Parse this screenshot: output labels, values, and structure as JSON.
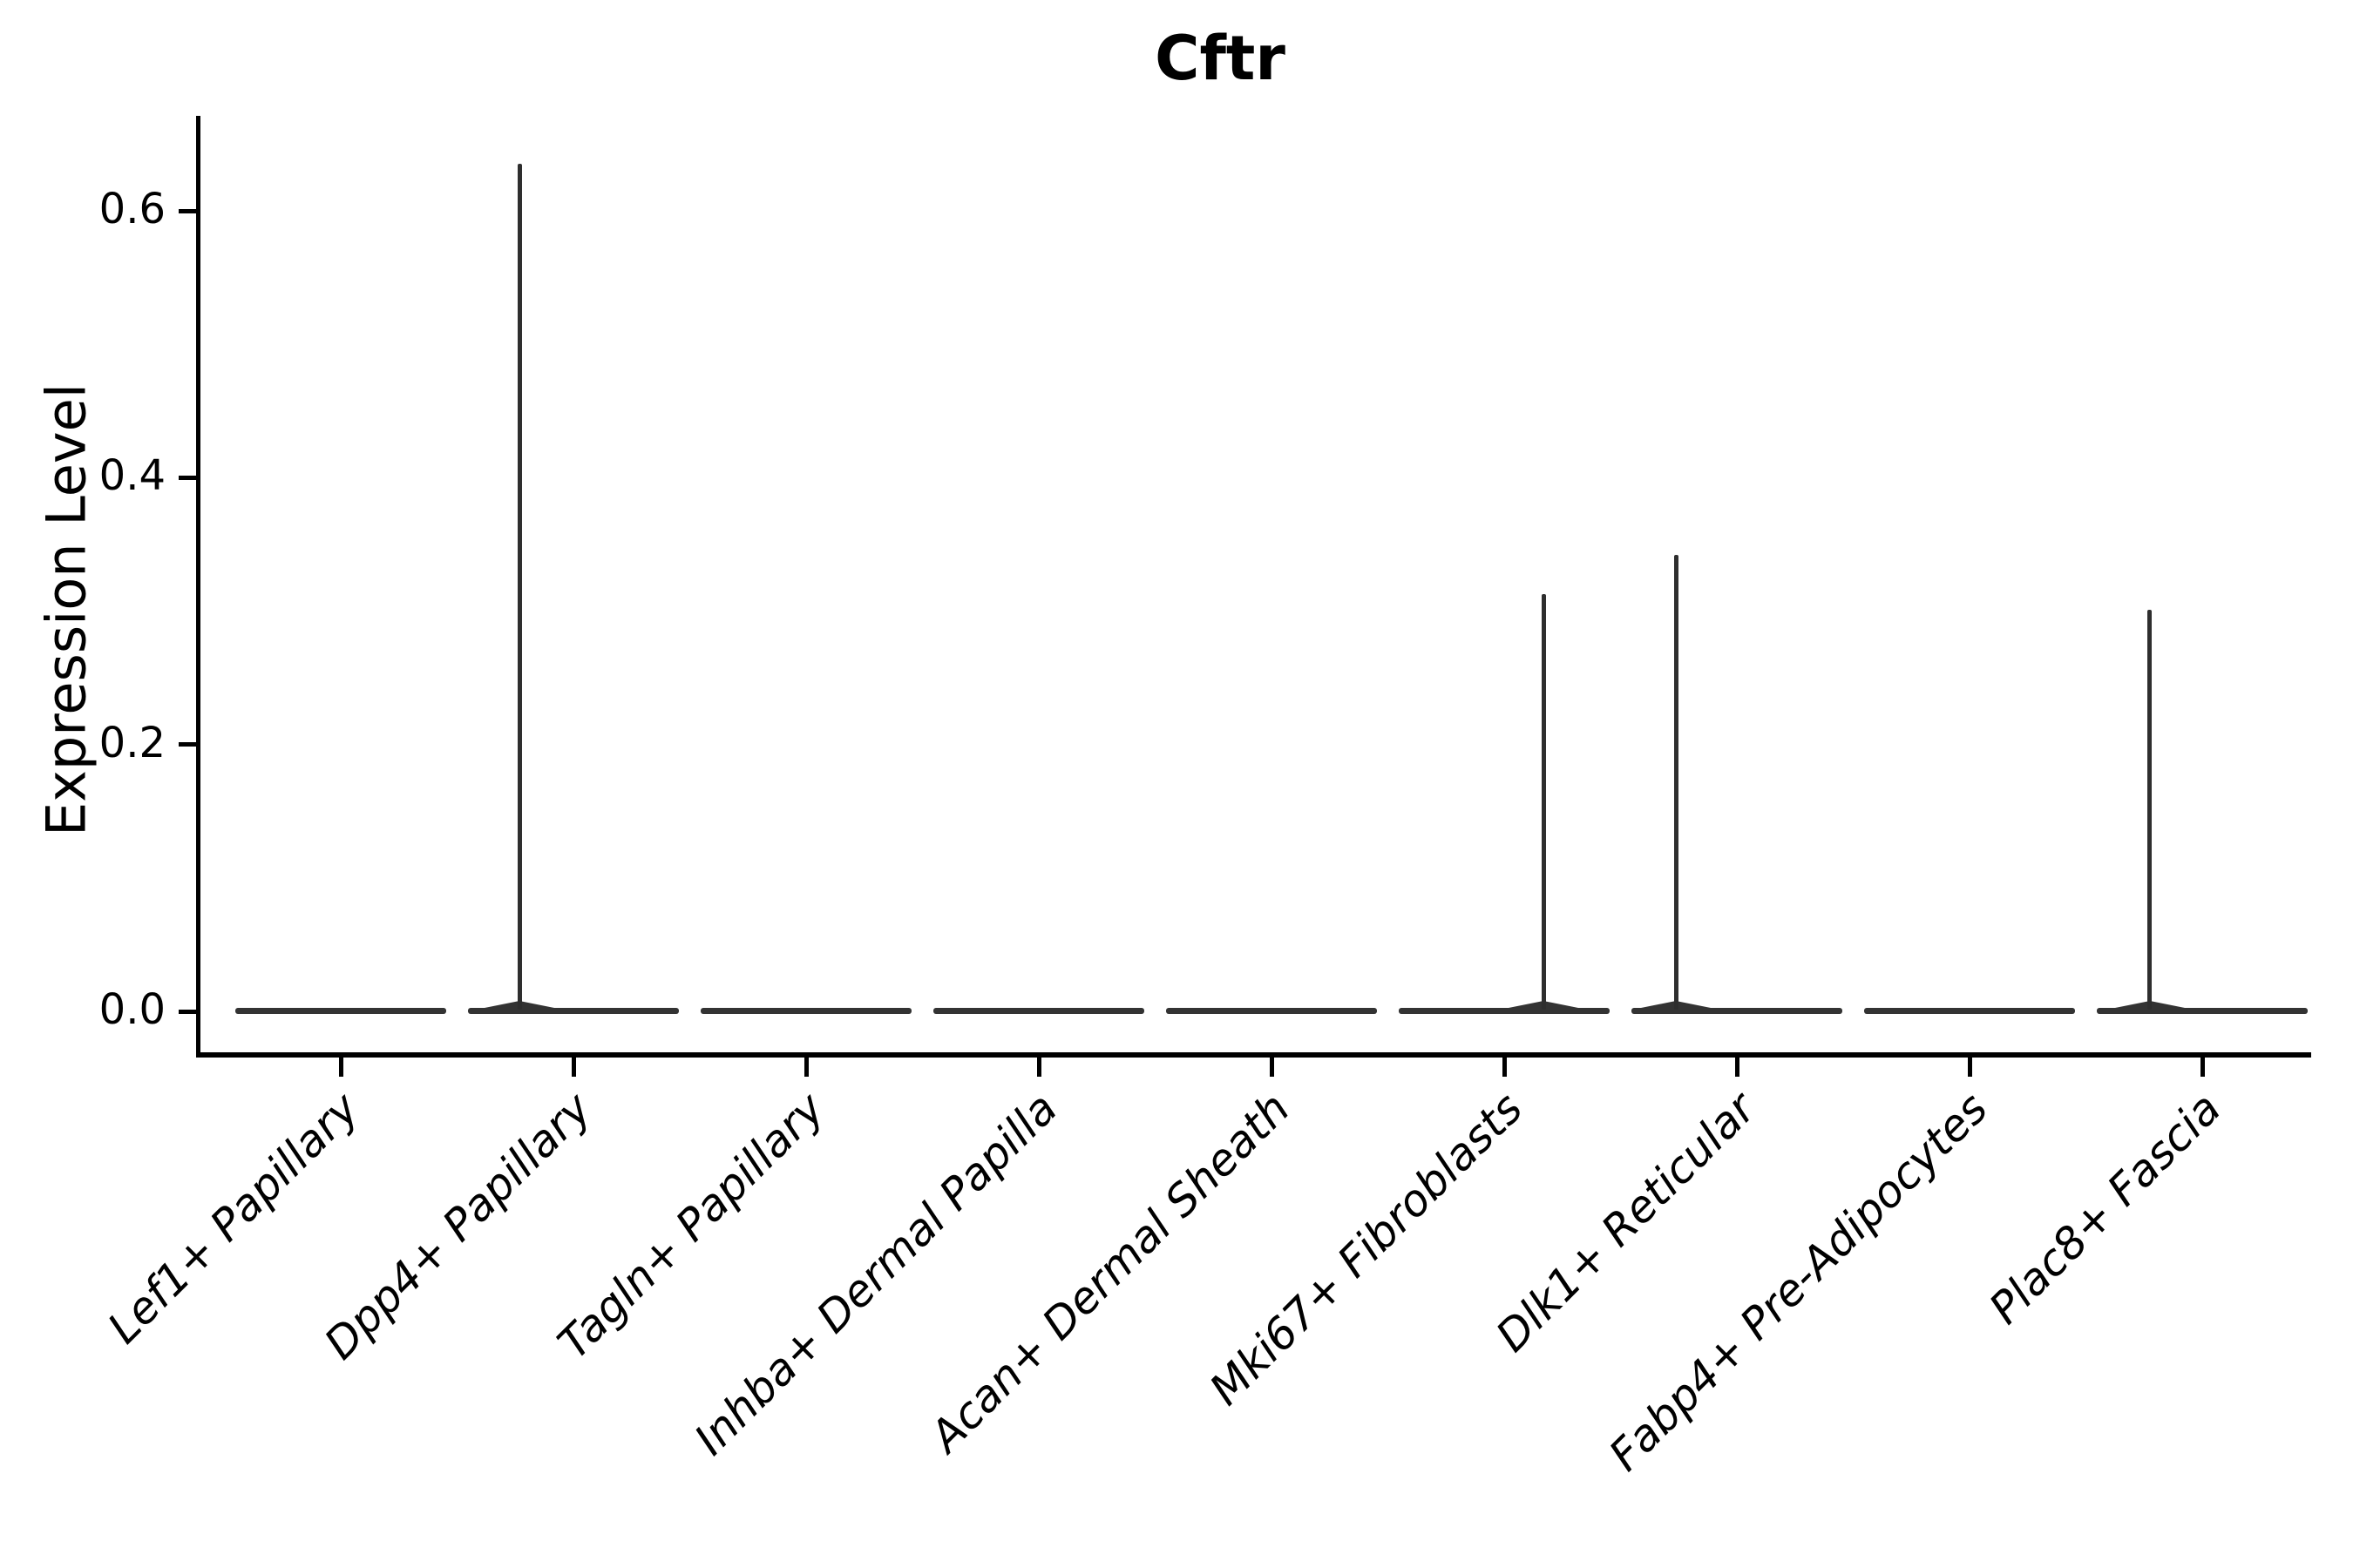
{
  "chart_data": {
    "type": "violin",
    "title": "Cftr",
    "ylabel": "Expression Level",
    "xlabel": "",
    "ytick_labels": [
      "0.0",
      "0.2",
      "0.4",
      "0.6"
    ],
    "ytick_values": [
      0.0,
      0.2,
      0.4,
      0.6
    ],
    "ylim": [
      -0.032,
      0.671
    ],
    "grid": false,
    "legend": "none",
    "x_label_rotation_deg": 45,
    "categories": [
      "Lef1+ Papillary",
      "Dpp4+ Papillary",
      "Tagln+ Papillary",
      "Inhba+ Dermal Papilla",
      "Acan+ Dermal Sheath",
      "Mki67+ Fibroblasts",
      "Dlk1+ Reticular",
      "Fabp4+ Pre-Adipocytes",
      "Plac8+ Fascia"
    ],
    "violins": [
      {
        "category": "Lef1+ Papillary",
        "max_expression": 0.0,
        "has_spike": false,
        "spike_offset_frac": 0
      },
      {
        "category": "Dpp4+ Papillary",
        "max_expression": 0.635,
        "has_spike": true,
        "spike_offset_frac": -0.232
      },
      {
        "category": "Tagln+ Papillary",
        "max_expression": 0.0,
        "has_spike": false,
        "spike_offset_frac": 0
      },
      {
        "category": "Inhba+ Dermal Papilla",
        "max_expression": 0.0,
        "has_spike": false,
        "spike_offset_frac": 0
      },
      {
        "category": "Acan+ Dermal Sheath",
        "max_expression": 0.0,
        "has_spike": false,
        "spike_offset_frac": 0
      },
      {
        "category": "Mki67+ Fibroblasts",
        "max_expression": 0.313,
        "has_spike": true,
        "spike_offset_frac": 0.169
      },
      {
        "category": "Dlk1+ Reticular",
        "max_expression": 0.342,
        "has_spike": true,
        "spike_offset_frac": -0.262
      },
      {
        "category": "Fabp4+ Pre-Adipocytes",
        "max_expression": 0.0,
        "has_spike": false,
        "spike_offset_frac": 0
      },
      {
        "category": "Plac8+ Fascia",
        "max_expression": 0.301,
        "has_spike": true,
        "spike_offset_frac": -0.225
      }
    ],
    "colors": {
      "violin_fill": "#333333",
      "spike": "#2e2e2e",
      "axis": "#000000",
      "text": "#000000",
      "background": "#ffffff"
    }
  }
}
